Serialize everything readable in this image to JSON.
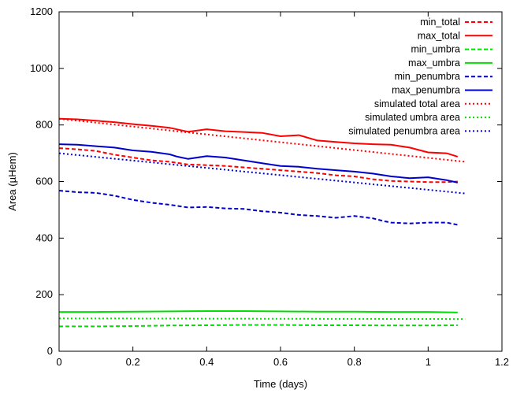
{
  "chart_data": {
    "type": "line",
    "title": "",
    "xlabel": "Time (days)",
    "ylabel": "Area (µHem)",
    "xlim": [
      0,
      1.2
    ],
    "ylim": [
      0,
      1200
    ],
    "xticks": [
      "0",
      "0.2",
      "0.4",
      "0.6",
      "0.8",
      "1",
      "1.2"
    ],
    "yticks": [
      "0",
      "200",
      "400",
      "600",
      "800",
      "1000",
      "1200"
    ],
    "legend_position": "top-right",
    "grid": false,
    "series": [
      {
        "name": "min_total",
        "color": "#ff0000",
        "style": "dashed",
        "x": [
          0,
          0.05,
          0.1,
          0.15,
          0.2,
          0.25,
          0.3,
          0.35,
          0.4,
          0.45,
          0.5,
          0.55,
          0.6,
          0.65,
          0.7,
          0.75,
          0.8,
          0.85,
          0.9,
          0.95,
          1.0,
          1.05,
          1.08
        ],
        "y": [
          718,
          714,
          708,
          695,
          685,
          675,
          670,
          660,
          658,
          655,
          650,
          645,
          640,
          635,
          630,
          622,
          618,
          608,
          602,
          600,
          598,
          598,
          600
        ]
      },
      {
        "name": "max_total",
        "color": "#ff0000",
        "style": "solid",
        "x": [
          0,
          0.05,
          0.1,
          0.15,
          0.2,
          0.25,
          0.3,
          0.35,
          0.4,
          0.45,
          0.5,
          0.55,
          0.6,
          0.65,
          0.7,
          0.75,
          0.8,
          0.85,
          0.9,
          0.95,
          1.0,
          1.05,
          1.08
        ],
        "y": [
          822,
          820,
          815,
          810,
          803,
          797,
          790,
          776,
          785,
          778,
          775,
          772,
          760,
          764,
          745,
          740,
          735,
          732,
          730,
          720,
          703,
          700,
          688
        ]
      },
      {
        "name": "min_umbra",
        "color": "#00e000",
        "style": "dashed",
        "x": [
          0,
          0.1,
          0.2,
          0.3,
          0.4,
          0.5,
          0.6,
          0.7,
          0.8,
          0.9,
          1.0,
          1.08
        ],
        "y": [
          88,
          88,
          89,
          91,
          92,
          93,
          93,
          92,
          92,
          91,
          91,
          92
        ]
      },
      {
        "name": "max_umbra",
        "color": "#00e000",
        "style": "solid",
        "x": [
          0,
          0.1,
          0.2,
          0.3,
          0.4,
          0.5,
          0.6,
          0.7,
          0.8,
          0.9,
          1.0,
          1.08
        ],
        "y": [
          139,
          139,
          140,
          141,
          142,
          142,
          141,
          140,
          140,
          139,
          139,
          137
        ]
      },
      {
        "name": "min_penumbra",
        "color": "#0000cc",
        "style": "dashed",
        "x": [
          0,
          0.05,
          0.1,
          0.15,
          0.2,
          0.25,
          0.3,
          0.35,
          0.4,
          0.45,
          0.5,
          0.55,
          0.6,
          0.65,
          0.7,
          0.75,
          0.8,
          0.85,
          0.88,
          0.9,
          0.95,
          1.0,
          1.05,
          1.08
        ],
        "y": [
          568,
          562,
          560,
          550,
          535,
          525,
          518,
          508,
          510,
          505,
          503,
          495,
          490,
          482,
          478,
          472,
          478,
          470,
          460,
          455,
          452,
          455,
          455,
          447
        ]
      },
      {
        "name": "max_penumbra",
        "color": "#0000cc",
        "style": "solid",
        "x": [
          0,
          0.05,
          0.1,
          0.15,
          0.2,
          0.25,
          0.3,
          0.32,
          0.35,
          0.4,
          0.45,
          0.5,
          0.55,
          0.6,
          0.65,
          0.7,
          0.75,
          0.8,
          0.85,
          0.9,
          0.95,
          1.0,
          1.05,
          1.08
        ],
        "y": [
          732,
          730,
          725,
          720,
          710,
          705,
          696,
          688,
          680,
          690,
          685,
          675,
          665,
          655,
          652,
          645,
          640,
          635,
          628,
          618,
          612,
          615,
          605,
          596
        ]
      },
      {
        "name": "simulated total area",
        "color": "#ff0000",
        "style": "dotted",
        "x": [
          0,
          1.1
        ],
        "y": [
          822,
          670
        ]
      },
      {
        "name": "simulated umbra area",
        "color": "#00e000",
        "style": "dotted",
        "x": [
          0,
          1.1
        ],
        "y": [
          116,
          114
        ]
      },
      {
        "name": "simulated penumbra area",
        "color": "#0000cc",
        "style": "dotted",
        "x": [
          0,
          1.1
        ],
        "y": [
          700,
          558
        ]
      }
    ]
  }
}
